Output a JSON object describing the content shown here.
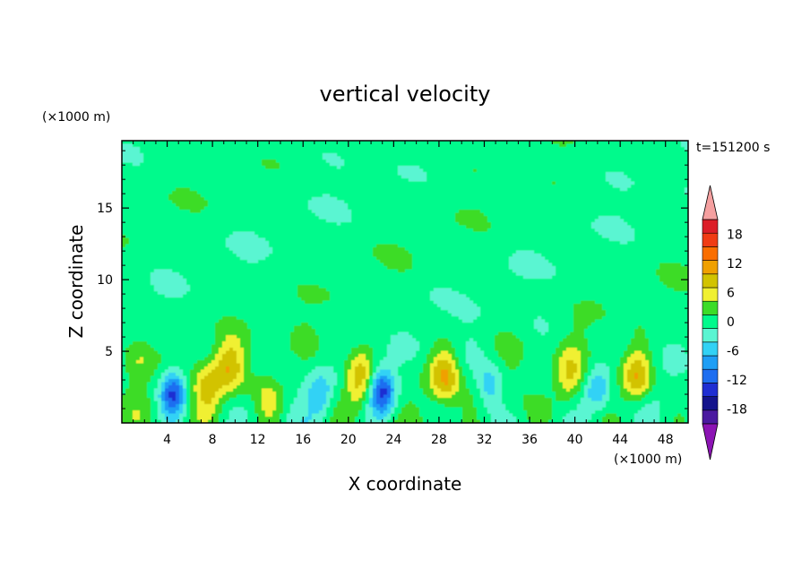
{
  "chart_data": {
    "type": "heatmap",
    "title": "vertical velocity",
    "xlabel": "X coordinate",
    "ylabel": "Z coordinate",
    "x_unit": "(×1000 m)",
    "y_unit": "(×1000 m)",
    "time_label": "t=151200 s",
    "xlim": [
      0,
      50
    ],
    "ylim": [
      0,
      19.7
    ],
    "x_ticks": [
      4,
      8,
      12,
      16,
      20,
      24,
      28,
      32,
      36,
      40,
      44,
      48
    ],
    "y_ticks": [
      5,
      10,
      15
    ],
    "colorbar": {
      "levels": [
        -21,
        -18,
        -15,
        -12,
        -9,
        -6,
        -3,
        0,
        3,
        6,
        9,
        12,
        15,
        18,
        21
      ],
      "tick_labels": [
        18,
        12,
        6,
        0,
        -6,
        -12,
        -18
      ],
      "colors": [
        "#4b1aa0",
        "#14148c",
        "#1f2ed2",
        "#1e6ef0",
        "#1e9ef5",
        "#32d2f5",
        "#5af5d2",
        "#00fa8c",
        "#3cdc28",
        "#f0f032",
        "#d2c300",
        "#f0a000",
        "#fa6e00",
        "#f03c14",
        "#dc1e28"
      ],
      "under_color": "#8c14b4",
      "over_color": "#f5a0a0"
    },
    "background_level": "0 to 3",
    "features": {
      "updrafts": [
        {
          "x": 1.5,
          "z": 4.5,
          "peak": 6
        },
        {
          "x": 7.5,
          "z": 2.3,
          "peak": 9
        },
        {
          "x": 9.5,
          "z": 4.0,
          "peak": 9
        },
        {
          "x": 13.0,
          "z": 1.6,
          "peak": 6
        },
        {
          "x": 21.0,
          "z": 3.0,
          "peak": 12
        },
        {
          "x": 28.5,
          "z": 3.3,
          "peak": 12
        },
        {
          "x": 39.5,
          "z": 3.2,
          "peak": 9
        },
        {
          "x": 45.5,
          "z": 3.2,
          "peak": 12
        }
      ],
      "downdrafts": [
        {
          "x": 4.5,
          "z": 2.0,
          "trough": -12
        },
        {
          "x": 17.5,
          "z": 2.0,
          "trough": -6
        },
        {
          "x": 23.0,
          "z": 2.2,
          "trough": -12
        },
        {
          "x": 32.5,
          "z": 2.5,
          "trough": -6
        },
        {
          "x": 42.0,
          "z": 2.5,
          "trough": -6
        }
      ]
    }
  }
}
